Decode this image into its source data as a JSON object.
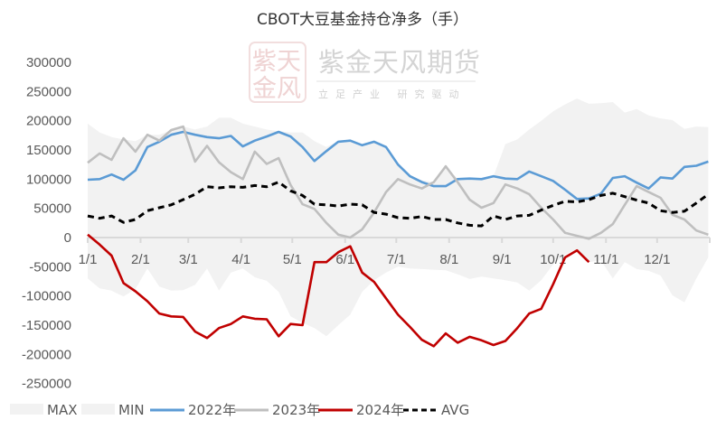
{
  "chart_data": {
    "type": "line",
    "title": "CBOT大豆基金持仓净多（手）",
    "xlabel": "",
    "ylabel": "",
    "x_ticks": [
      "1/1",
      "2/1",
      "3/1",
      "4/1",
      "5/1",
      "6/1",
      "7/1",
      "8/1",
      "9/1",
      "10/1",
      "11/1",
      "12/1"
    ],
    "x_unit": "week of year (53 weekly points)",
    "ylim": [
      -250000,
      300000
    ],
    "y_ticks": [
      300000,
      250000,
      200000,
      150000,
      100000,
      50000,
      0,
      -50000,
      -100000,
      -150000,
      -200000,
      -250000
    ],
    "grid": false,
    "legend_placement": "bottom",
    "series": [
      {
        "name": "MAX",
        "type": "area",
        "color": "#f2f2f2",
        "values": [
          195000,
          180000,
          172000,
          168000,
          165000,
          176000,
          176000,
          184000,
          190000,
          185000,
          190000,
          205000,
          205000,
          195000,
          190000,
          185000,
          182000,
          180000,
          180000,
          165000,
          155000,
          165000,
          166000,
          158000,
          164000,
          155000,
          125000,
          105000,
          98000,
          95000,
          122000,
          100000,
          101000,
          100000,
          105000,
          160000,
          168000,
          185000,
          200000,
          216000,
          228000,
          238000,
          229000,
          230000,
          232000,
          214000,
          220000,
          209000,
          204000,
          201000,
          186000,
          190000,
          189000
        ]
      },
      {
        "name": "MIN",
        "type": "area",
        "color": "#f2f2f2",
        "values": [
          -70000,
          -87000,
          -91000,
          -101000,
          -88000,
          -53000,
          -84000,
          -91000,
          -90000,
          -81000,
          -53000,
          -91000,
          -60000,
          -53000,
          -68000,
          -74000,
          -93000,
          -135000,
          -146000,
          -155000,
          -169000,
          -150000,
          -132000,
          -93000,
          -73000,
          -60000,
          -50000,
          -53000,
          -54000,
          -55000,
          -56000,
          -63000,
          -71000,
          -67000,
          -70000,
          -73000,
          -77000,
          -91000,
          -73000,
          -46000,
          -29000,
          -20000,
          -42000,
          -39000,
          -70000,
          -42000,
          -54000,
          -57000,
          -65000,
          -99000,
          -111000,
          -70000,
          -34000
        ]
      },
      {
        "name": "2022年",
        "type": "line",
        "color": "#5b9bd5",
        "values": [
          99000,
          100000,
          108000,
          99000,
          115000,
          155000,
          164000,
          176000,
          181000,
          176000,
          172000,
          170000,
          174000,
          156000,
          166000,
          173000,
          181000,
          173000,
          155000,
          131000,
          148000,
          164000,
          166000,
          158000,
          164000,
          155000,
          125000,
          105000,
          95000,
          88000,
          88000,
          100000,
          101000,
          100000,
          105000,
          101000,
          100000,
          113000,
          105000,
          97000,
          82000,
          66000,
          67000,
          75000,
          102000,
          105000,
          94000,
          84000,
          103000,
          101000,
          121000,
          123000,
          130000
        ]
      },
      {
        "name": "2023年",
        "type": "line",
        "color": "#bfbfbf",
        "values": [
          128000,
          144000,
          133000,
          170000,
          147000,
          176000,
          166000,
          184000,
          190000,
          130000,
          157000,
          129000,
          112000,
          100000,
          147000,
          126000,
          136000,
          90000,
          57000,
          49000,
          25000,
          5000,
          0,
          14000,
          43000,
          78000,
          100000,
          91000,
          84000,
          95000,
          122000,
          95000,
          65000,
          51000,
          59000,
          91000,
          84000,
          74000,
          51000,
          31000,
          8000,
          3000,
          -2000,
          8000,
          23000,
          56000,
          88000,
          78000,
          68000,
          39000,
          31000,
          12000,
          5000
        ]
      },
      {
        "name": "2024年",
        "type": "line",
        "color": "#c00000",
        "values": [
          5000,
          -12000,
          -31000,
          -78000,
          -92000,
          -109000,
          -130000,
          -135000,
          -136000,
          -161000,
          -172000,
          -155000,
          -148000,
          -135000,
          -139000,
          -140000,
          -169000,
          -148000,
          -150000,
          -42000,
          -42000,
          -25000,
          -15000,
          -60000,
          -76000,
          -104000,
          -132000,
          -153000,
          -175000,
          -186000,
          -164000,
          -180000,
          -170000,
          -176000,
          -184000,
          -177000,
          -155000,
          -130000,
          -122000,
          -80000,
          -34000,
          -22000,
          -42000
        ]
      },
      {
        "name": "AVG",
        "type": "line",
        "dash": true,
        "color": "#000000",
        "values": [
          37000,
          33000,
          37000,
          26000,
          31000,
          46000,
          51000,
          56000,
          65000,
          74000,
          87000,
          85000,
          87000,
          86000,
          89000,
          87000,
          95000,
          80000,
          72000,
          57000,
          56000,
          54000,
          57000,
          56000,
          43000,
          40000,
          34000,
          33000,
          36000,
          31000,
          31000,
          25000,
          21000,
          20000,
          37000,
          31000,
          37000,
          38000,
          47000,
          55000,
          62000,
          61000,
          65000,
          72000,
          76000,
          70000,
          64000,
          59000,
          46000,
          43000,
          45000,
          59000,
          74000
        ]
      }
    ]
  },
  "watermark": {
    "seal_chars": [
      "紫",
      "天",
      "金",
      "风"
    ],
    "brand": "紫金天风期货",
    "slogan": "立足产业 研究驱动"
  }
}
